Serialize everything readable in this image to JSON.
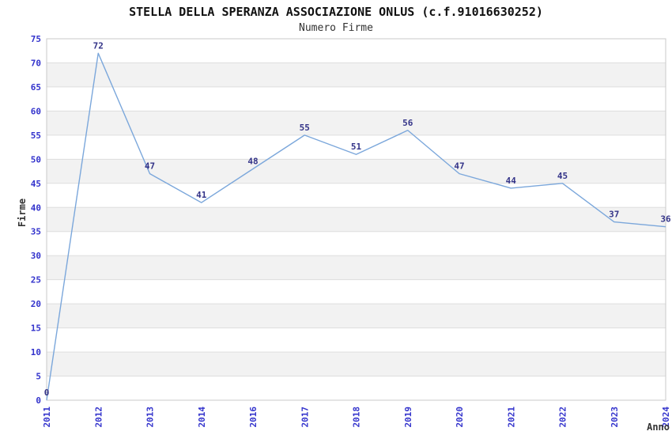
{
  "title": "STELLA DELLA SPERANZA ASSOCIAZIONE ONLUS (c.f.91016630252)",
  "subtitle": "Numero Firme",
  "chart_data": {
    "type": "line",
    "title": "STELLA DELLA SPERANZA ASSOCIAZIONE ONLUS (c.f.91016630252)",
    "subtitle": "Numero Firme",
    "xlabel": "Anno",
    "ylabel": "Firme",
    "categories": [
      "2011",
      "2012",
      "2013",
      "2014",
      "2016",
      "2017",
      "2018",
      "2019",
      "2020",
      "2021",
      "2022",
      "2023",
      "2024"
    ],
    "series": [
      {
        "name": "Numero Firme",
        "values": [
          0,
          72,
          47,
          41,
          48,
          55,
          51,
          56,
          47,
          44,
          45,
          37,
          36
        ]
      }
    ],
    "data_labels_visible": true,
    "ylim": [
      0,
      75
    ],
    "ytick_step": 5,
    "yticks": [
      0,
      5,
      10,
      15,
      20,
      25,
      30,
      35,
      40,
      45,
      50,
      55,
      60,
      65,
      70,
      75
    ],
    "grid": true,
    "alternating_bands": true,
    "legend_position": "none",
    "x_tick_rotation_degrees": 90,
    "colors": {
      "line": "#7BA7DB",
      "data_label": "#333388",
      "tick_label": "#3333CC",
      "band": "#F2F2F2",
      "grid": "#DEDEDE",
      "border": "#C9C9C9",
      "text": "#333333"
    }
  }
}
